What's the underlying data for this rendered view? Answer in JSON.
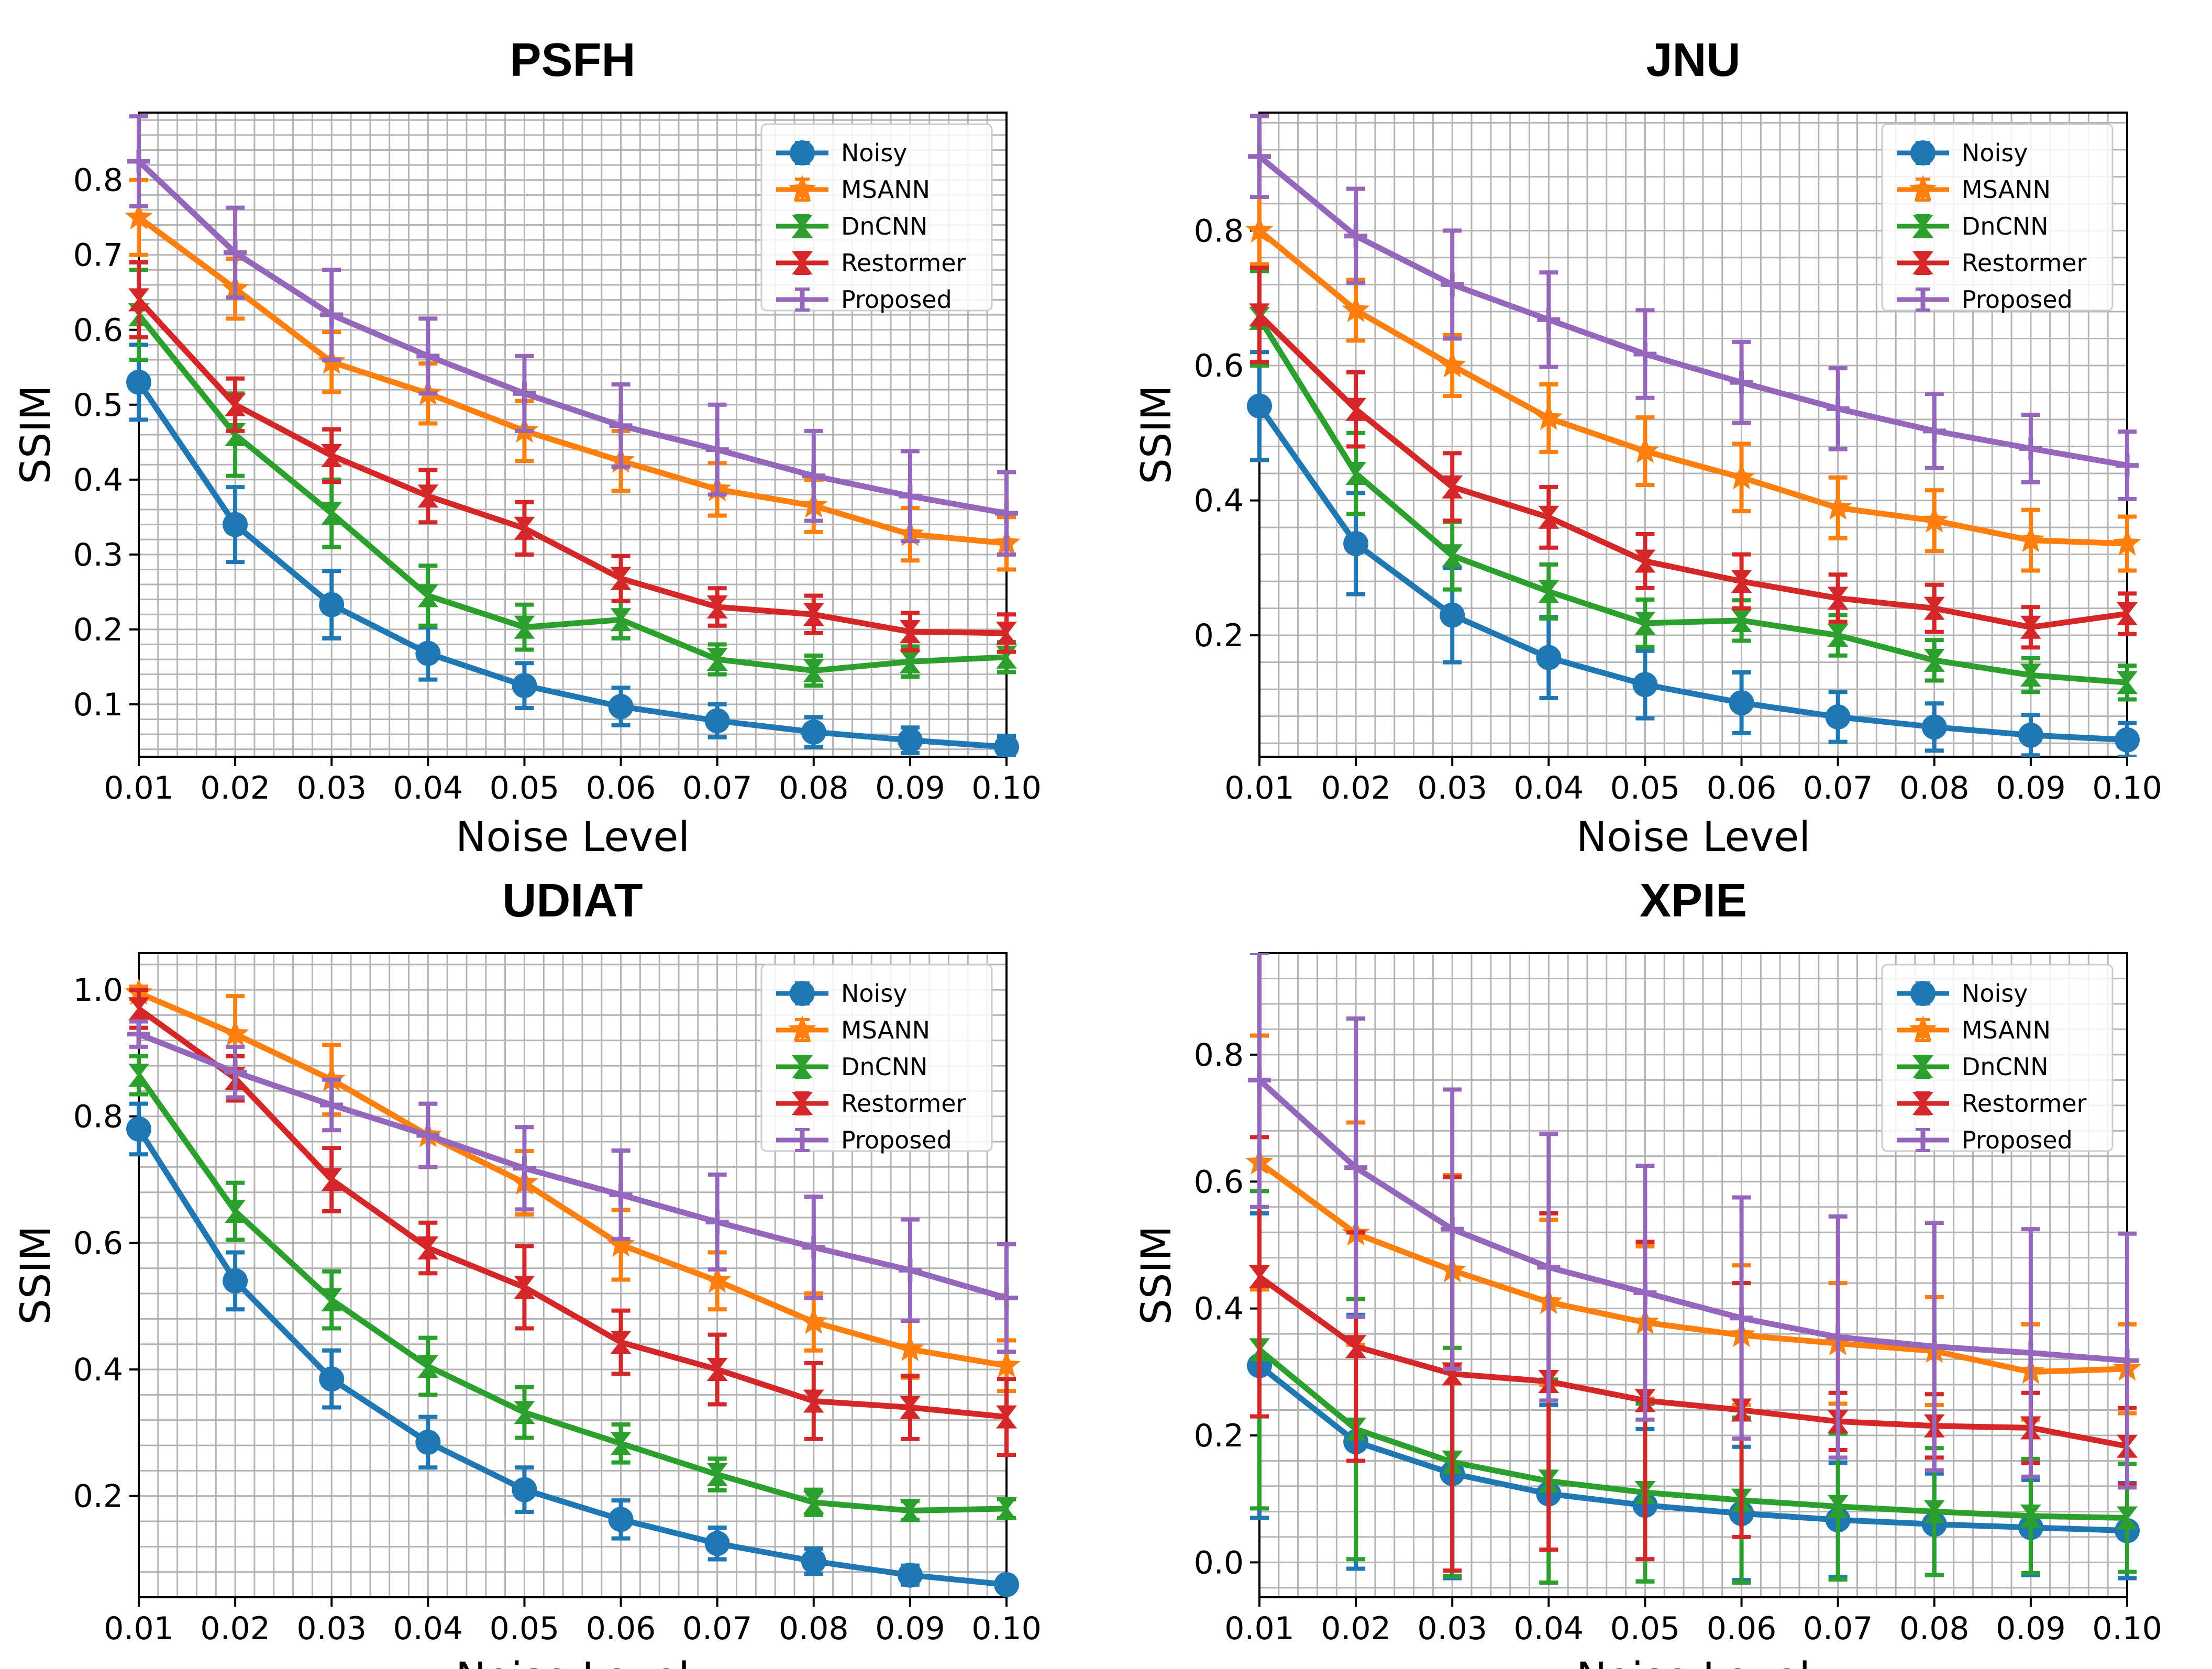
{
  "chart_data": [
    {
      "type": "line",
      "title": "PSFH",
      "xlabel": "Noise Level",
      "ylabel": "SSIM",
      "xlim": [
        0.01,
        0.1
      ],
      "ylim": [
        0.03,
        0.89
      ],
      "x": [
        0.01,
        0.02,
        0.03,
        0.04,
        0.05,
        0.06,
        0.07,
        0.08,
        0.09,
        0.1
      ],
      "x_tick_labels": [
        "0.01",
        "0.02",
        "0.03",
        "0.04",
        "0.05",
        "0.06",
        "0.07",
        "0.08",
        "0.09",
        "0.10"
      ],
      "y_ticks": [
        0.1,
        0.2,
        0.3,
        0.4,
        0.5,
        0.6,
        0.7,
        0.8
      ],
      "y_tick_labels": [
        "0.1",
        "0.2",
        "0.3",
        "0.4",
        "0.5",
        "0.6",
        "0.7",
        "0.8"
      ],
      "grid": true,
      "legend_position": "top-right",
      "series": [
        {
          "name": "Noisy",
          "color": "#1f77b4",
          "marker": "circle",
          "values": [
            0.53,
            0.34,
            0.233,
            0.168,
            0.125,
            0.097,
            0.078,
            0.063,
            0.052,
            0.043
          ],
          "errors": [
            0.05,
            0.05,
            0.045,
            0.035,
            0.03,
            0.025,
            0.022,
            0.02,
            0.017,
            0.015
          ]
        },
        {
          "name": "MSANN",
          "color": "#ff7f0e",
          "marker": "star",
          "values": [
            0.75,
            0.655,
            0.557,
            0.515,
            0.465,
            0.425,
            0.387,
            0.365,
            0.327,
            0.315
          ],
          "errors": [
            0.05,
            0.04,
            0.04,
            0.04,
            0.04,
            0.04,
            0.035,
            0.035,
            0.035,
            0.035
          ]
        },
        {
          "name": "DnCNN",
          "color": "#2ca02c",
          "marker": "tri",
          "values": [
            0.62,
            0.46,
            0.355,
            0.245,
            0.203,
            0.213,
            0.16,
            0.145,
            0.157,
            0.163
          ],
          "errors": [
            0.06,
            0.055,
            0.045,
            0.04,
            0.03,
            0.025,
            0.02,
            0.02,
            0.02,
            0.02
          ]
        },
        {
          "name": "Restormer",
          "color": "#d62728",
          "marker": "tri",
          "values": [
            0.64,
            0.5,
            0.432,
            0.378,
            0.335,
            0.268,
            0.23,
            0.22,
            0.197,
            0.195
          ],
          "errors": [
            0.05,
            0.035,
            0.035,
            0.035,
            0.035,
            0.03,
            0.025,
            0.025,
            0.025,
            0.025
          ]
        },
        {
          "name": "Proposed",
          "color": "#9467bd",
          "marker": "plus",
          "values": [
            0.825,
            0.703,
            0.62,
            0.565,
            0.515,
            0.472,
            0.44,
            0.405,
            0.378,
            0.355
          ],
          "errors": [
            0.06,
            0.06,
            0.06,
            0.05,
            0.05,
            0.055,
            0.06,
            0.06,
            0.06,
            0.055
          ]
        }
      ]
    },
    {
      "type": "line",
      "title": "JNU",
      "xlabel": "Noise Level",
      "ylabel": "SSIM",
      "xlim": [
        0.01,
        0.1
      ],
      "ylim": [
        0.02,
        0.975
      ],
      "x": [
        0.01,
        0.02,
        0.03,
        0.04,
        0.05,
        0.06,
        0.07,
        0.08,
        0.09,
        0.1
      ],
      "x_tick_labels": [
        "0.01",
        "0.02",
        "0.03",
        "0.04",
        "0.05",
        "0.06",
        "0.07",
        "0.08",
        "0.09",
        "0.10"
      ],
      "y_ticks": [
        0.2,
        0.4,
        0.6,
        0.8
      ],
      "y_tick_labels": [
        "0.2",
        "0.4",
        "0.6",
        "0.8"
      ],
      "grid": true,
      "legend_position": "top-right",
      "series": [
        {
          "name": "Noisy",
          "color": "#1f77b4",
          "marker": "circle",
          "values": [
            0.54,
            0.336,
            0.23,
            0.167,
            0.127,
            0.1,
            0.079,
            0.064,
            0.052,
            0.045
          ],
          "errors": [
            0.08,
            0.075,
            0.07,
            0.06,
            0.05,
            0.045,
            0.037,
            0.035,
            0.03,
            0.025
          ]
        },
        {
          "name": "MSANN",
          "color": "#ff7f0e",
          "marker": "star",
          "values": [
            0.8,
            0.682,
            0.6,
            0.522,
            0.473,
            0.434,
            0.389,
            0.37,
            0.341,
            0.336
          ],
          "errors": [
            0.05,
            0.045,
            0.045,
            0.05,
            0.05,
            0.05,
            0.045,
            0.045,
            0.045,
            0.04
          ]
        },
        {
          "name": "DnCNN",
          "color": "#2ca02c",
          "marker": "tri",
          "values": [
            0.67,
            0.44,
            0.318,
            0.265,
            0.218,
            0.222,
            0.2,
            0.163,
            0.141,
            0.13
          ],
          "errors": [
            0.07,
            0.06,
            0.05,
            0.04,
            0.035,
            0.03,
            0.03,
            0.03,
            0.025,
            0.025
          ]
        },
        {
          "name": "Restormer",
          "color": "#d62728",
          "marker": "tri",
          "values": [
            0.675,
            0.535,
            0.42,
            0.375,
            0.31,
            0.28,
            0.255,
            0.24,
            0.212,
            0.232
          ],
          "errors": [
            0.07,
            0.055,
            0.05,
            0.045,
            0.04,
            0.04,
            0.035,
            0.035,
            0.03,
            0.03
          ]
        },
        {
          "name": "Proposed",
          "color": "#9467bd",
          "marker": "plus",
          "values": [
            0.91,
            0.792,
            0.72,
            0.668,
            0.617,
            0.575,
            0.536,
            0.503,
            0.477,
            0.452
          ],
          "errors": [
            0.06,
            0.07,
            0.08,
            0.07,
            0.065,
            0.06,
            0.06,
            0.055,
            0.05,
            0.05
          ]
        }
      ]
    },
    {
      "type": "line",
      "title": "UDIAT",
      "xlabel": "Noise Level",
      "ylabel": "SSIM",
      "xlim": [
        0.01,
        0.1
      ],
      "ylim": [
        0.04,
        1.058
      ],
      "x": [
        0.01,
        0.02,
        0.03,
        0.04,
        0.05,
        0.06,
        0.07,
        0.08,
        0.09,
        0.1
      ],
      "x_tick_labels": [
        "0.01",
        "0.02",
        "0.03",
        "0.04",
        "0.05",
        "0.06",
        "0.07",
        "0.08",
        "0.09",
        "0.10"
      ],
      "y_ticks": [
        0.2,
        0.4,
        0.6,
        0.8,
        1.0
      ],
      "y_tick_labels": [
        "0.2",
        "0.4",
        "0.6",
        "0.8",
        "1.0"
      ],
      "grid": true,
      "legend_position": "top-right",
      "series": [
        {
          "name": "Noisy",
          "color": "#1f77b4",
          "marker": "circle",
          "values": [
            0.78,
            0.54,
            0.385,
            0.285,
            0.21,
            0.163,
            0.125,
            0.097,
            0.075,
            0.06
          ],
          "errors": [
            0.04,
            0.045,
            0.045,
            0.04,
            0.035,
            0.03,
            0.025,
            0.02,
            0.015,
            0.01
          ]
        },
        {
          "name": "MSANN",
          "color": "#ff7f0e",
          "marker": "star",
          "values": [
            0.995,
            0.93,
            0.858,
            0.77,
            0.695,
            0.597,
            0.54,
            0.475,
            0.432,
            0.406
          ],
          "errors": [
            0.01,
            0.06,
            0.055,
            0.05,
            0.05,
            0.055,
            0.045,
            0.045,
            0.045,
            0.04
          ]
        },
        {
          "name": "DnCNN",
          "color": "#2ca02c",
          "marker": "tri",
          "values": [
            0.865,
            0.65,
            0.51,
            0.405,
            0.332,
            0.283,
            0.234,
            0.19,
            0.177,
            0.18
          ],
          "errors": [
            0.03,
            0.045,
            0.045,
            0.045,
            0.04,
            0.03,
            0.025,
            0.02,
            0.015,
            0.015
          ]
        },
        {
          "name": "Restormer",
          "color": "#d62728",
          "marker": "tri",
          "values": [
            0.97,
            0.86,
            0.7,
            0.592,
            0.53,
            0.443,
            0.4,
            0.35,
            0.34,
            0.325
          ],
          "errors": [
            0.03,
            0.035,
            0.05,
            0.04,
            0.065,
            0.05,
            0.055,
            0.06,
            0.05,
            0.06
          ]
        },
        {
          "name": "Proposed",
          "color": "#9467bd",
          "marker": "plus",
          "values": [
            0.93,
            0.87,
            0.818,
            0.77,
            0.718,
            0.676,
            0.633,
            0.593,
            0.557,
            0.513
          ],
          "errors": [
            0.02,
            0.04,
            0.04,
            0.05,
            0.065,
            0.07,
            0.075,
            0.08,
            0.08,
            0.085
          ]
        }
      ]
    },
    {
      "type": "line",
      "title": "XPIE",
      "xlabel": "Noise Level",
      "ylabel": "SSIM",
      "xlim": [
        0.01,
        0.1
      ],
      "ylim": [
        -0.055,
        0.96
      ],
      "x": [
        0.01,
        0.02,
        0.03,
        0.04,
        0.05,
        0.06,
        0.07,
        0.08,
        0.09,
        0.1
      ],
      "x_tick_labels": [
        "0.01",
        "0.02",
        "0.03",
        "0.04",
        "0.05",
        "0.06",
        "0.07",
        "0.08",
        "0.09",
        "0.10"
      ],
      "y_ticks": [
        0.0,
        0.2,
        0.4,
        0.6,
        0.8
      ],
      "y_tick_labels": [
        "0.0",
        "0.2",
        "0.4",
        "0.6",
        "0.8"
      ],
      "grid": true,
      "legend_position": "top-right",
      "series": [
        {
          "name": "Noisy",
          "color": "#1f77b4",
          "marker": "circle",
          "values": [
            0.31,
            0.19,
            0.14,
            0.108,
            0.09,
            0.077,
            0.067,
            0.06,
            0.055,
            0.05
          ],
          "errors": [
            0.24,
            0.2,
            0.165,
            0.14,
            0.12,
            0.105,
            0.09,
            0.08,
            0.075,
            0.075
          ]
        },
        {
          "name": "MSANN",
          "color": "#ff7f0e",
          "marker": "star",
          "values": [
            0.63,
            0.518,
            0.46,
            0.41,
            0.378,
            0.358,
            0.345,
            0.333,
            0.3,
            0.305
          ],
          "errors": [
            0.2,
            0.175,
            0.15,
            0.13,
            0.12,
            0.11,
            0.095,
            0.085,
            0.075,
            0.07
          ]
        },
        {
          "name": "DnCNN",
          "color": "#2ca02c",
          "marker": "tri",
          "values": [
            0.335,
            0.21,
            0.158,
            0.128,
            0.11,
            0.098,
            0.088,
            0.08,
            0.073,
            0.07
          ],
          "errors": [
            0.25,
            0.205,
            0.18,
            0.16,
            0.14,
            0.13,
            0.115,
            0.1,
            0.09,
            0.085
          ]
        },
        {
          "name": "Restormer",
          "color": "#d62728",
          "marker": "tri",
          "values": [
            0.45,
            0.34,
            0.297,
            0.285,
            0.255,
            0.24,
            0.222,
            0.215,
            0.212,
            0.183
          ],
          "errors": [
            0.22,
            0.18,
            0.31,
            0.265,
            0.25,
            0.2,
            0.045,
            0.05,
            0.055,
            0.06
          ]
        },
        {
          "name": "Proposed",
          "color": "#9467bd",
          "marker": "plus",
          "values": [
            0.76,
            0.622,
            0.525,
            0.465,
            0.425,
            0.385,
            0.355,
            0.34,
            0.33,
            0.318
          ],
          "errors": [
            0.2,
            0.235,
            0.22,
            0.21,
            0.2,
            0.19,
            0.19,
            0.195,
            0.195,
            0.2
          ]
        }
      ]
    }
  ]
}
